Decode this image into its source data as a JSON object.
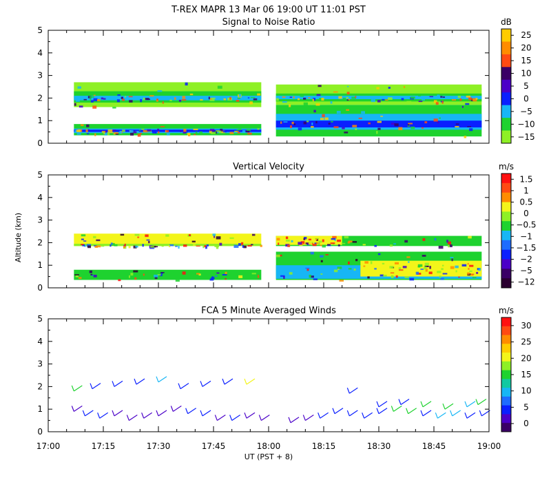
{
  "figure_title": "T-REX   MAPR 13 Mar 06   19:00 UT   11:01   PST",
  "x_axis": {
    "label": "UT  (PST + 8)",
    "ticks": [
      "17:00",
      "17:15",
      "17:30",
      "17:45",
      "18:00",
      "18:15",
      "18:30",
      "18:45",
      "19:00"
    ]
  },
  "y_axis": {
    "label": "Altitude (km)",
    "ticks": [
      "0",
      "1",
      "2",
      "3",
      "4",
      "5"
    ],
    "range_km": [
      0,
      5
    ]
  },
  "colors": {
    "purple_dark": "#3a0066",
    "violet": "#4b00c8",
    "blue": "#0a1fff",
    "mid_blue": "#1e6cff",
    "cyan": "#17b6f5",
    "teal": "#11c9a2",
    "green": "#1ed22f",
    "lime": "#8ef025",
    "yellow": "#f3f51a",
    "gold": "#ffcc00",
    "orange": "#ff8c00",
    "orange_red": "#ff4a12",
    "red": "#ff1010",
    "black_purple": "#2a0030"
  },
  "chart_data": [
    {
      "type": "heatmap",
      "title": "Signal to Noise Ratio",
      "colorbar_unit": "dB",
      "colorbar_labels": [
        "25",
        "20",
        "15",
        "10",
        "5",
        "0",
        "−5",
        "−10",
        "−15"
      ],
      "colorbar_colors": [
        "#ffcc00",
        "#ff8c00",
        "#ff4a12",
        "#3a0066",
        "#4b00c8",
        "#0a1fff",
        "#17b6f5",
        "#1ed22f",
        "#8ef025"
      ],
      "xlim": [
        0,
        120
      ],
      "ylim": [
        0,
        5
      ],
      "data_gap_minutes": [
        58,
        62
      ],
      "bands": [
        {
          "x": [
            7,
            58
          ],
          "y": [
            0.35,
            0.85
          ],
          "color": "#1ed22f"
        },
        {
          "x": [
            7,
            58
          ],
          "y": [
            0.45,
            0.65
          ],
          "color": "#17b6f5"
        },
        {
          "x": [
            7,
            58
          ],
          "y": [
            0.5,
            0.6
          ],
          "color": "#0a1fff"
        },
        {
          "x": [
            7,
            58
          ],
          "y": [
            1.6,
            2.7
          ],
          "color": "#8ef025"
        },
        {
          "x": [
            7,
            58
          ],
          "y": [
            1.8,
            2.3
          ],
          "color": "#1ed22f"
        },
        {
          "x": [
            7,
            58
          ],
          "y": [
            1.9,
            2.1
          ],
          "color": "#17b6f5"
        },
        {
          "x": [
            62,
            118
          ],
          "y": [
            0.3,
            1.7
          ],
          "color": "#1ed22f"
        },
        {
          "x": [
            62,
            118
          ],
          "y": [
            0.6,
            1.3
          ],
          "color": "#17b6f5"
        },
        {
          "x": [
            62,
            118
          ],
          "y": [
            0.7,
            1.0
          ],
          "color": "#0a1fff"
        },
        {
          "x": [
            62,
            118
          ],
          "y": [
            1.7,
            2.6
          ],
          "color": "#8ef025"
        },
        {
          "x": [
            62,
            118
          ],
          "y": [
            1.85,
            2.2
          ],
          "color": "#1ed22f"
        },
        {
          "x": [
            62,
            118
          ],
          "y": [
            1.95,
            2.1
          ],
          "color": "#17b6f5"
        }
      ]
    },
    {
      "type": "heatmap",
      "title": "Vertical Velocity",
      "colorbar_unit": "m/s",
      "colorbar_labels": [
        "1.5",
        "1",
        "0.5",
        "0",
        "−0.5",
        "−1",
        "−1.5",
        "−2",
        "−5",
        "−12"
      ],
      "colorbar_colors": [
        "#ff1010",
        "#ff4a12",
        "#ff8c00",
        "#f3f51a",
        "#8ef025",
        "#1ed22f",
        "#17b6f5",
        "#1e6cff",
        "#0a1fff",
        "#4b00c8",
        "#3a0066",
        "#2a0030"
      ],
      "xlim": [
        0,
        120
      ],
      "ylim": [
        0,
        5
      ],
      "data_gap_minutes": [
        58,
        62
      ],
      "bands": [
        {
          "x": [
            7,
            58
          ],
          "y": [
            0.35,
            0.8
          ],
          "color": "#1ed22f"
        },
        {
          "x": [
            7,
            58
          ],
          "y": [
            1.85,
            2.4
          ],
          "color": "#f3f51a"
        },
        {
          "x": [
            7,
            58
          ],
          "y": [
            1.85,
            1.95
          ],
          "color": "#8ef025"
        },
        {
          "x": [
            62,
            118
          ],
          "y": [
            0.35,
            1.6
          ],
          "color": "#1ed22f"
        },
        {
          "x": [
            62,
            118
          ],
          "y": [
            0.4,
            1.0
          ],
          "color": "#17b6f5"
        },
        {
          "x": [
            85,
            118
          ],
          "y": [
            0.5,
            1.2
          ],
          "color": "#f3f51a"
        },
        {
          "x": [
            62,
            118
          ],
          "y": [
            1.85,
            2.3
          ],
          "color": "#1ed22f"
        },
        {
          "x": [
            62,
            80
          ],
          "y": [
            1.9,
            2.3
          ],
          "color": "#f3f51a"
        }
      ]
    },
    {
      "type": "scatter",
      "title": "FCA 5 Minute Averaged Winds",
      "colorbar_unit": "m/s",
      "colorbar_labels": [
        "30",
        "25",
        "20",
        "15",
        "10",
        "5",
        "0"
      ],
      "colorbar_colors": [
        "#ff1010",
        "#ff4a12",
        "#ff8c00",
        "#ffcc00",
        "#f3f51a",
        "#8ef025",
        "#1ed22f",
        "#11c9a2",
        "#17b6f5",
        "#1e6cff",
        "#0a1fff",
        "#4b00c8",
        "#3a0066"
      ],
      "xlim": [
        0,
        120
      ],
      "ylim": [
        0,
        5
      ],
      "barbs": [
        {
          "x": 7,
          "y": 1.8,
          "color": "#1ed22f"
        },
        {
          "x": 12,
          "y": 1.9,
          "color": "#0a1fff"
        },
        {
          "x": 18,
          "y": 2.0,
          "color": "#0a1fff"
        },
        {
          "x": 24,
          "y": 2.1,
          "color": "#0a1fff"
        },
        {
          "x": 30,
          "y": 2.2,
          "color": "#17b6f5"
        },
        {
          "x": 36,
          "y": 1.9,
          "color": "#0a1fff"
        },
        {
          "x": 42,
          "y": 2.0,
          "color": "#0a1fff"
        },
        {
          "x": 48,
          "y": 2.1,
          "color": "#0a1fff"
        },
        {
          "x": 54,
          "y": 2.1,
          "color": "#f3f51a"
        },
        {
          "x": 82,
          "y": 1.7,
          "color": "#0a1fff"
        },
        {
          "x": 90,
          "y": 1.1,
          "color": "#0a1fff"
        },
        {
          "x": 96,
          "y": 1.2,
          "color": "#0a1fff"
        },
        {
          "x": 102,
          "y": 1.1,
          "color": "#1ed22f"
        },
        {
          "x": 108,
          "y": 1.0,
          "color": "#1ed22f"
        },
        {
          "x": 114,
          "y": 1.1,
          "color": "#17b6f5"
        },
        {
          "x": 117,
          "y": 1.2,
          "color": "#1ed22f"
        },
        {
          "x": 7,
          "y": 0.9,
          "color": "#4b00c8"
        },
        {
          "x": 10,
          "y": 0.7,
          "color": "#0a1fff"
        },
        {
          "x": 14,
          "y": 0.6,
          "color": "#0a1fff"
        },
        {
          "x": 18,
          "y": 0.7,
          "color": "#4b00c8"
        },
        {
          "x": 22,
          "y": 0.5,
          "color": "#4b00c8"
        },
        {
          "x": 26,
          "y": 0.6,
          "color": "#4b00c8"
        },
        {
          "x": 30,
          "y": 0.7,
          "color": "#4b00c8"
        },
        {
          "x": 34,
          "y": 0.9,
          "color": "#4b00c8"
        },
        {
          "x": 38,
          "y": 0.8,
          "color": "#0a1fff"
        },
        {
          "x": 42,
          "y": 0.7,
          "color": "#0a1fff"
        },
        {
          "x": 46,
          "y": 0.5,
          "color": "#4b00c8"
        },
        {
          "x": 50,
          "y": 0.5,
          "color": "#0a1fff"
        },
        {
          "x": 54,
          "y": 0.6,
          "color": "#4b00c8"
        },
        {
          "x": 58,
          "y": 0.5,
          "color": "#4b00c8"
        },
        {
          "x": 66,
          "y": 0.4,
          "color": "#4b00c8"
        },
        {
          "x": 70,
          "y": 0.5,
          "color": "#4b00c8"
        },
        {
          "x": 74,
          "y": 0.6,
          "color": "#0a1fff"
        },
        {
          "x": 78,
          "y": 0.8,
          "color": "#0a1fff"
        },
        {
          "x": 82,
          "y": 0.7,
          "color": "#0a1fff"
        },
        {
          "x": 86,
          "y": 0.6,
          "color": "#0a1fff"
        },
        {
          "x": 90,
          "y": 0.8,
          "color": "#0a1fff"
        },
        {
          "x": 94,
          "y": 0.9,
          "color": "#1ed22f"
        },
        {
          "x": 98,
          "y": 0.8,
          "color": "#1ed22f"
        },
        {
          "x": 102,
          "y": 0.7,
          "color": "#0a1fff"
        },
        {
          "x": 106,
          "y": 0.6,
          "color": "#17b6f5"
        },
        {
          "x": 110,
          "y": 0.7,
          "color": "#17b6f5"
        },
        {
          "x": 114,
          "y": 0.6,
          "color": "#0a1fff"
        },
        {
          "x": 118,
          "y": 0.7,
          "color": "#0a1fff"
        }
      ]
    }
  ]
}
